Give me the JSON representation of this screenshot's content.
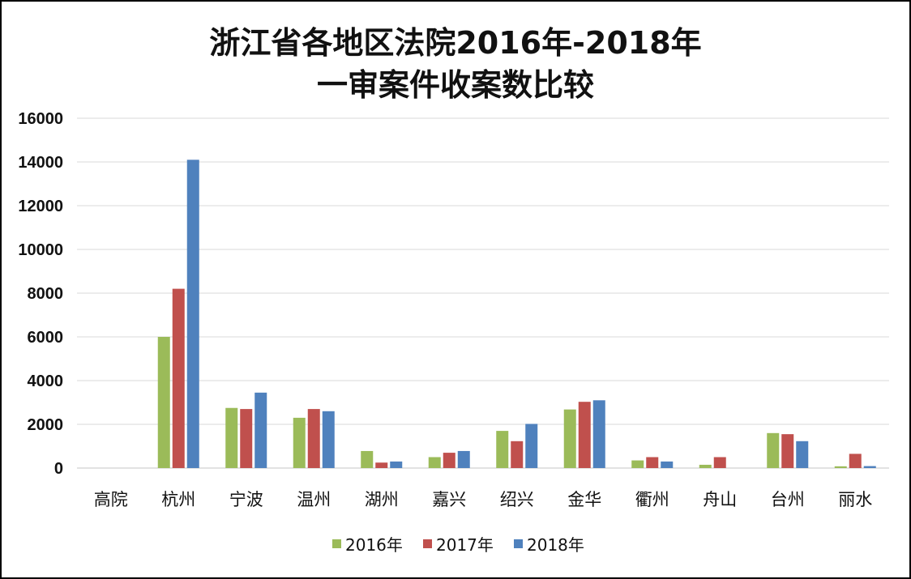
{
  "chart_data": {
    "type": "bar",
    "title_line1": "浙江省各地区法院2016年-2018年",
    "title_line2": "一审案件收案数比较",
    "categories": [
      "高院",
      "杭州",
      "宁波",
      "温州",
      "湖州",
      "嘉兴",
      "绍兴",
      "金华",
      "衢州",
      "舟山",
      "台州",
      "丽水"
    ],
    "series": [
      {
        "name": "2016年",
        "color": "#9bbb59",
        "values": [
          0,
          6000,
          2750,
          2300,
          780,
          500,
          1700,
          2680,
          350,
          150,
          1600,
          80
        ]
      },
      {
        "name": "2017年",
        "color": "#c0504d",
        "values": [
          0,
          8200,
          2700,
          2700,
          250,
          700,
          1230,
          3030,
          500,
          500,
          1550,
          650
        ]
      },
      {
        "name": "2018年",
        "color": "#4f81bd",
        "values": [
          0,
          14100,
          3450,
          2600,
          300,
          780,
          2020,
          3100,
          300,
          0,
          1230,
          90
        ]
      }
    ],
    "ylim": [
      0,
      16000
    ],
    "yticks": [
      "0",
      "2000",
      "4000",
      "6000",
      "8000",
      "10000",
      "12000",
      "14000",
      "16000"
    ],
    "grid": true,
    "legend_position": "bottom"
  }
}
